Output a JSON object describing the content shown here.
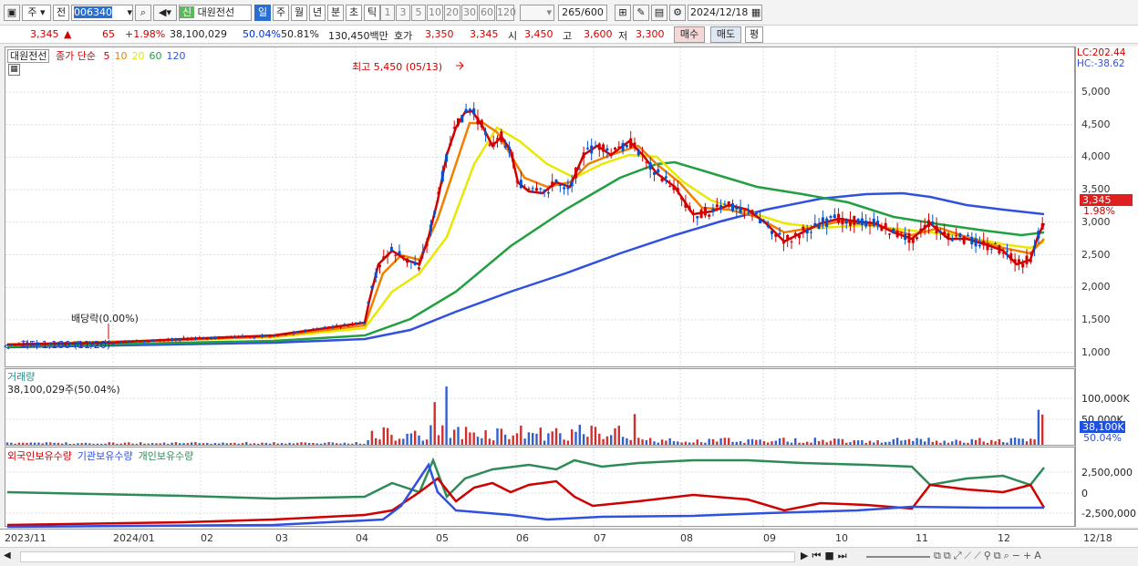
{
  "toolbar": {
    "market": "주",
    "type": "전",
    "code": "006340",
    "name_prefix": "신",
    "name": "대원전선",
    "periods": [
      {
        "label": "일",
        "selected": true
      },
      {
        "label": "주"
      },
      {
        "label": "월"
      },
      {
        "label": "년"
      },
      {
        "label": "분"
      },
      {
        "label": "초"
      },
      {
        "label": "틱"
      }
    ],
    "intervals": [
      "1",
      "3",
      "5",
      "10",
      "20",
      "30",
      "60",
      "120"
    ],
    "count": "265",
    "count_max": "/600",
    "date": "2024/12/18"
  },
  "quote": {
    "price": "3,345",
    "change_sign": "▲",
    "change": "65",
    "change_pct": "+1.98%",
    "volume": "38,100,029",
    "vol_ratio1": "50.04%",
    "vol_ratio2": "50.81%",
    "amount": "130,450백만",
    "bid_label": "호가",
    "bid1": "3,350",
    "bid2": "3,345",
    "open_label": "시",
    "open": "3,450",
    "high_label": "고",
    "high": "3,600",
    "low_label": "저",
    "low": "3,300",
    "buy": "매수",
    "sell": "매도",
    "avg": "평"
  },
  "price_panel": {
    "legend_name": "대원전선",
    "legend_title": "종가 단순",
    "ma_labels": [
      "5",
      "10",
      "20",
      "60",
      "120"
    ],
    "ma_colors": [
      "#d00000",
      "#f08000",
      "#e8e800",
      "#20a040",
      "#3050e0"
    ],
    "high_annotation": "최고 5,450 (05/13)",
    "low_annotation": "최저 1,106 (11/20)",
    "dividend_annotation": "배당락(0.00%)",
    "lc": "LC:202.44",
    "hc": "HC:-38.62",
    "current_price_tag": "3,345",
    "current_pct": "1.98%",
    "y_ticks": [
      "5,000",
      "4,500",
      "4,000",
      "3,500",
      "3,000",
      "2,500",
      "2,000",
      "1,500",
      "1,000"
    ]
  },
  "volume_panel": {
    "title": "거래량",
    "current": "38,100,029주(50.04%)",
    "y_ticks": [
      "100,000K",
      "50,000K"
    ],
    "tag": "38,100K",
    "tag_pct": "50.04%"
  },
  "holding_panel": {
    "legend": [
      "외국인보유수량",
      "기관보유수량",
      "개인보유수량"
    ],
    "legend_colors": [
      "#d00000",
      "#3050e0",
      "#2e8b57"
    ],
    "y_ticks": [
      "2,500,000",
      "0",
      "-2,500,000"
    ]
  },
  "x_axis": {
    "labels": [
      "2023/11",
      "2024/01",
      "02",
      "03",
      "04",
      "05",
      "06",
      "07",
      "08",
      "09",
      "10",
      "11",
      "12",
      "12/18"
    ]
  }
}
